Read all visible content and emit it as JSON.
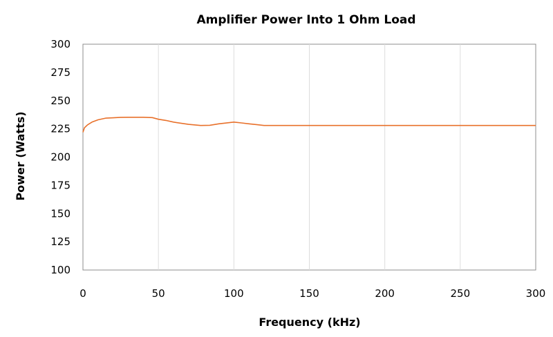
{
  "chart_data": {
    "type": "line",
    "title": "Amplifier Power Into 1 Ohm Load",
    "xlabel": "Frequency (kHz)",
    "ylabel": "Power (Watts)",
    "xlim": [
      0,
      300
    ],
    "ylim": [
      100,
      300
    ],
    "xticks": [
      0,
      50,
      100,
      150,
      200,
      250,
      300
    ],
    "yticks": [
      100,
      125,
      150,
      175,
      200,
      225,
      250,
      275,
      300
    ],
    "grid": {
      "x": true,
      "y": false
    },
    "legend": "none",
    "series": [
      {
        "color": "#E8702A",
        "x": [
          0,
          1,
          3,
          6,
          10,
          15,
          20,
          25,
          30,
          40,
          46,
          50,
          55,
          60,
          70,
          78,
          84,
          90,
          100,
          105,
          110,
          115,
          120,
          122,
          150,
          200,
          250,
          300
        ],
        "y": [
          222,
          226,
          228.5,
          231,
          233,
          234.5,
          234.8,
          235.2,
          235.3,
          235.3,
          235,
          233.5,
          232.5,
          231,
          229,
          228,
          228.2,
          229.5,
          231,
          230.3,
          229.5,
          228.8,
          228,
          228,
          228,
          228,
          228,
          228
        ]
      }
    ]
  }
}
